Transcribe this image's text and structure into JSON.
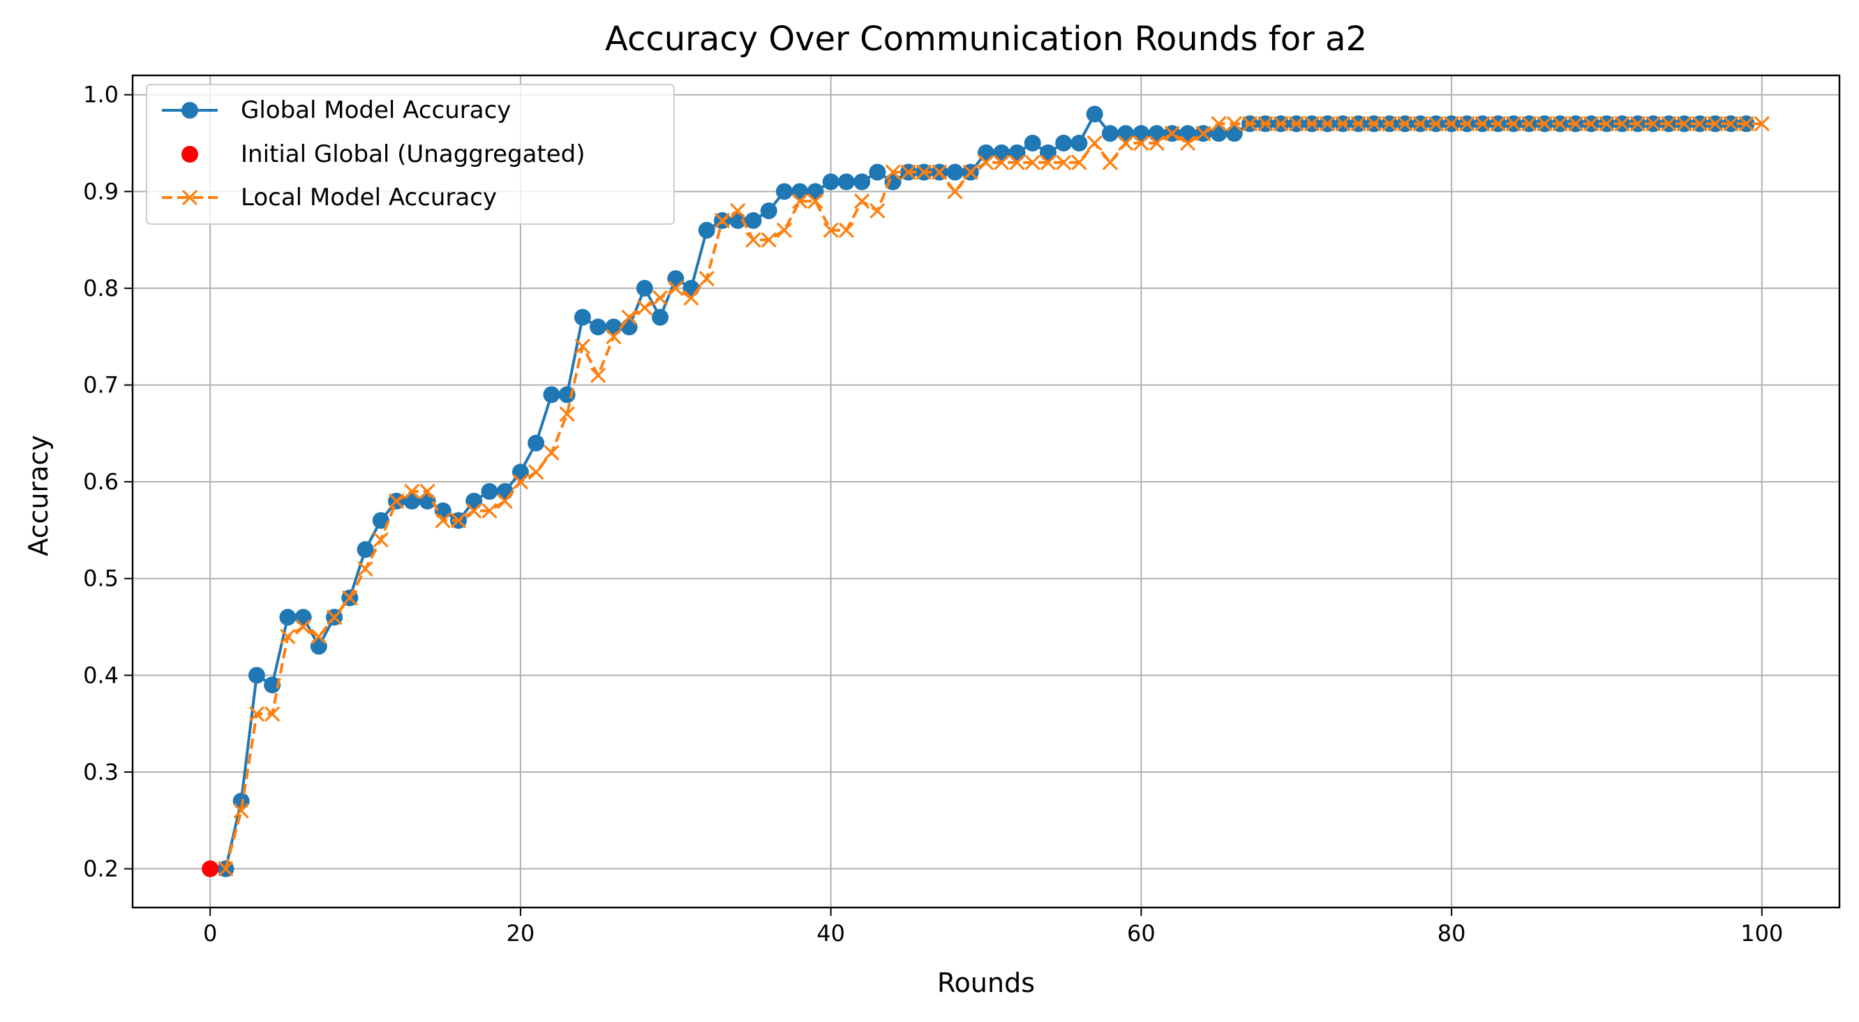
{
  "chart_data": {
    "type": "line",
    "title": "Accuracy Over Communication Rounds for a2",
    "xlabel": "Rounds",
    "ylabel": "Accuracy",
    "xlim": [
      -5,
      105
    ],
    "ylim": [
      0.16,
      1.02
    ],
    "xticks": [
      0,
      20,
      40,
      60,
      80,
      100
    ],
    "yticks": [
      0.2,
      0.3,
      0.4,
      0.5,
      0.6,
      0.7,
      0.8,
      0.9,
      1.0
    ],
    "grid": true,
    "legend": "top-left",
    "colors": {
      "global": "#1f77b4",
      "initial": "#ff0000",
      "local": "#ff7f0e"
    },
    "initial_point": {
      "name": "Initial Global (Unaggregated)",
      "x": 0,
      "y": 0.2
    },
    "series": [
      {
        "name": "Global Model Accuracy",
        "style": "solid-circle",
        "x_start": 1,
        "values": [
          0.2,
          0.27,
          0.4,
          0.39,
          0.46,
          0.46,
          0.43,
          0.46,
          0.48,
          0.53,
          0.56,
          0.58,
          0.58,
          0.58,
          0.57,
          0.56,
          0.58,
          0.59,
          0.59,
          0.61,
          0.64,
          0.69,
          0.69,
          0.77,
          0.76,
          0.76,
          0.76,
          0.8,
          0.77,
          0.81,
          0.8,
          0.86,
          0.87,
          0.87,
          0.87,
          0.88,
          0.9,
          0.9,
          0.9,
          0.91,
          0.91,
          0.91,
          0.92,
          0.91,
          0.92,
          0.92,
          0.92,
          0.92,
          0.92,
          0.94,
          0.94,
          0.94,
          0.95,
          0.94,
          0.95,
          0.95,
          0.98,
          0.96,
          0.96,
          0.96,
          0.96,
          0.96,
          0.96,
          0.96,
          0.96,
          0.96,
          0.97,
          0.97,
          0.97,
          0.97,
          0.97,
          0.97,
          0.97,
          0.97,
          0.97,
          0.97,
          0.97,
          0.97,
          0.97,
          0.97,
          0.97,
          0.97,
          0.97,
          0.97,
          0.97,
          0.97,
          0.97,
          0.97,
          0.97,
          0.97,
          0.97,
          0.97,
          0.97,
          0.97,
          0.97,
          0.97,
          0.97,
          0.97,
          0.97
        ]
      },
      {
        "name": "Local Model Accuracy",
        "style": "dashed-x",
        "x_start": 1,
        "values": [
          0.2,
          0.26,
          0.36,
          0.36,
          0.44,
          0.45,
          0.44,
          0.46,
          0.48,
          0.51,
          0.54,
          0.58,
          0.59,
          0.59,
          0.56,
          0.56,
          0.57,
          0.57,
          0.58,
          0.6,
          0.61,
          0.63,
          0.67,
          0.74,
          0.71,
          0.75,
          0.77,
          0.78,
          0.79,
          0.8,
          0.79,
          0.81,
          0.87,
          0.88,
          0.85,
          0.85,
          0.86,
          0.89,
          0.89,
          0.86,
          0.86,
          0.89,
          0.88,
          0.92,
          0.92,
          0.92,
          0.92,
          0.9,
          0.92,
          0.93,
          0.93,
          0.93,
          0.93,
          0.93,
          0.93,
          0.93,
          0.95,
          0.93,
          0.95,
          0.95,
          0.95,
          0.96,
          0.95,
          0.96,
          0.97,
          0.97,
          0.97,
          0.97,
          0.97,
          0.97,
          0.97,
          0.97,
          0.97,
          0.97,
          0.97,
          0.97,
          0.97,
          0.97,
          0.97,
          0.97,
          0.97,
          0.97,
          0.97,
          0.97,
          0.97,
          0.97,
          0.97,
          0.97,
          0.97,
          0.97,
          0.97,
          0.97,
          0.97,
          0.97,
          0.97,
          0.97,
          0.97,
          0.97,
          0.97,
          0.97
        ]
      }
    ]
  }
}
